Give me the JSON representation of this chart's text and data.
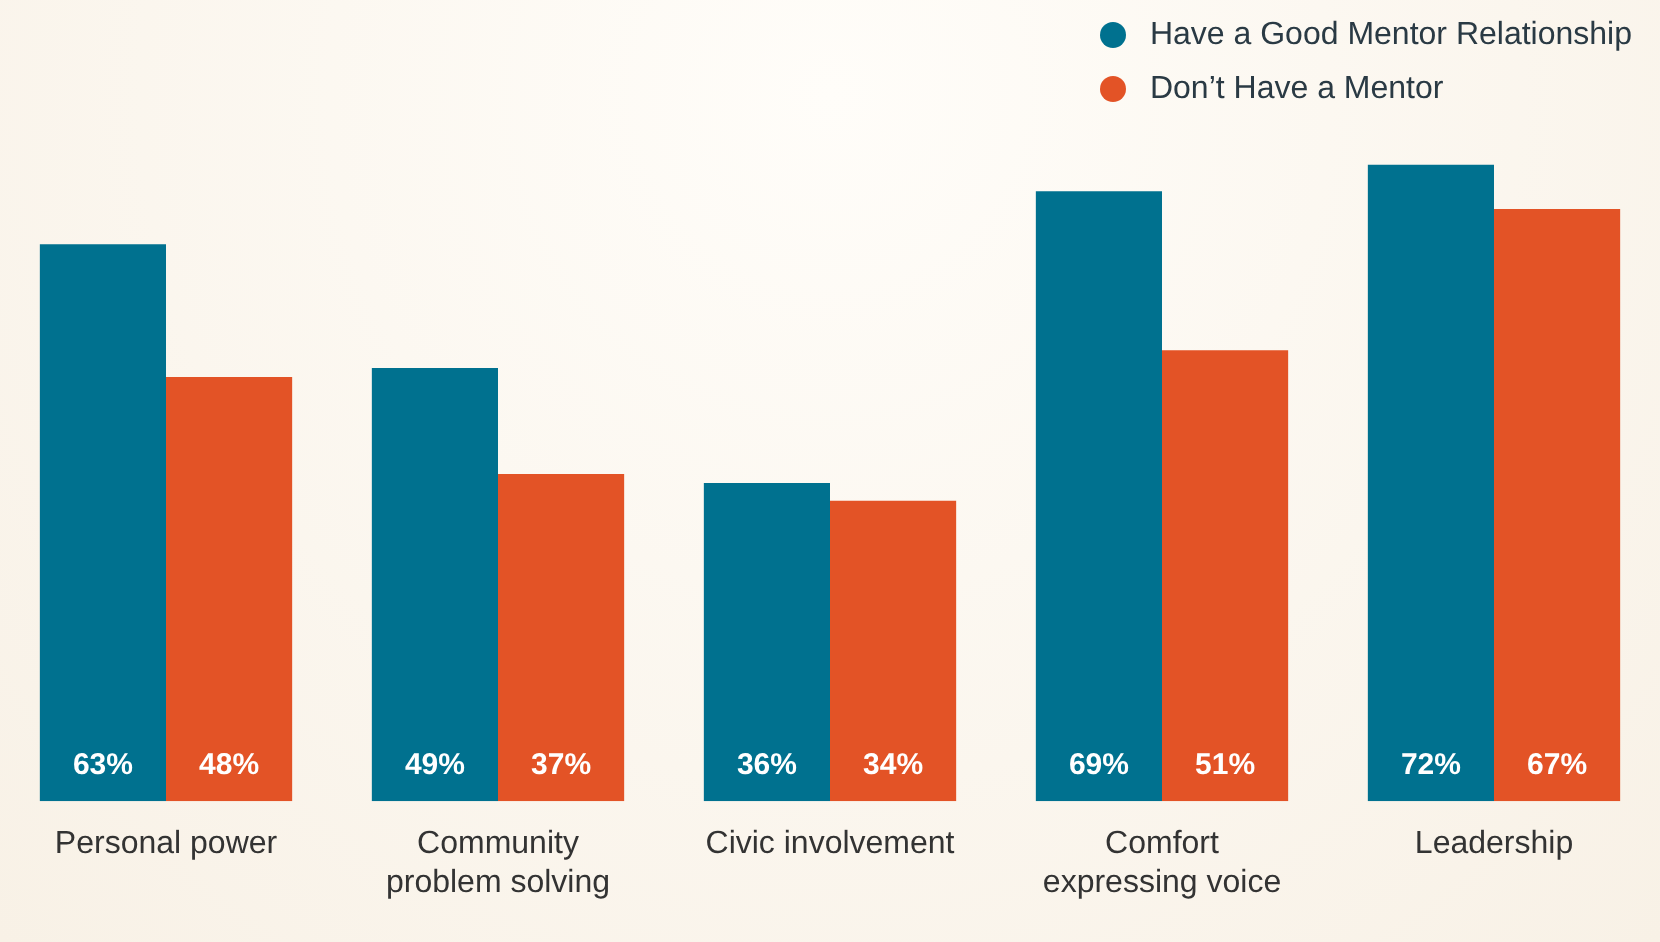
{
  "chart_data": {
    "type": "bar",
    "categories": [
      "Personal power",
      "Community problem solving",
      "Civic involvement",
      "Comfort expressing voice",
      "Leadership"
    ],
    "series": [
      {
        "name": "Have a Good Mentor Relationship",
        "color": "#00718f",
        "values": [
          63,
          49,
          36,
          69,
          72
        ],
        "value_labels": [
          "63%",
          "49%",
          "36%",
          "69%",
          "72%"
        ]
      },
      {
        "name": "Don’t Have a Mentor",
        "color": "#e35326",
        "values": [
          48,
          37,
          34,
          51,
          67
        ],
        "value_labels": [
          "48%",
          "37%",
          "34%",
          "51%",
          "67%"
        ]
      }
    ],
    "grid": false,
    "legend": "top right",
    "tick_labels": "x"
  }
}
